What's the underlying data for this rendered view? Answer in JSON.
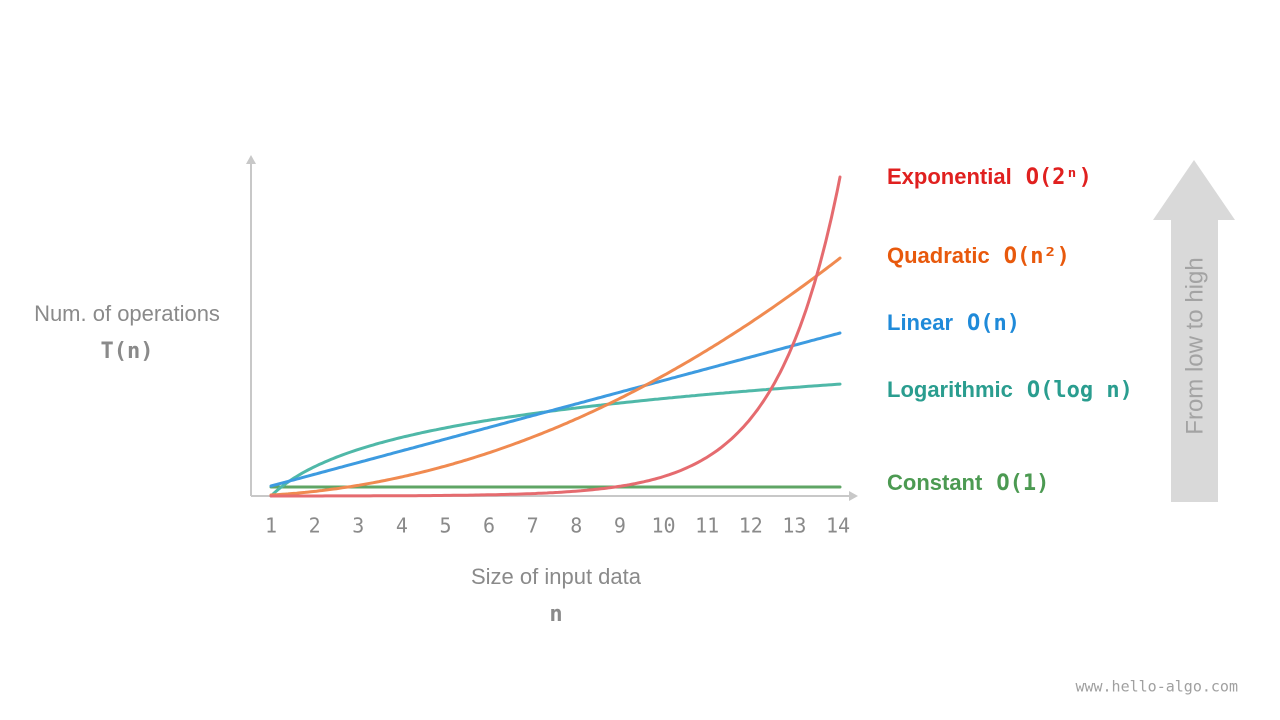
{
  "y_axis": {
    "label": "Num. of operations",
    "symbol": "T(n)"
  },
  "x_axis": {
    "label": "Size of input data",
    "symbol": "n",
    "ticks": [
      1,
      2,
      3,
      4,
      5,
      6,
      7,
      8,
      9,
      10,
      11,
      12,
      13,
      14
    ]
  },
  "legend": [
    {
      "name": "Exponential",
      "notation": "O(2ⁿ)"
    },
    {
      "name": "Quadratic",
      "notation": "O(n²)"
    },
    {
      "name": "Linear",
      "notation": "O(n)"
    },
    {
      "name": "Logarithmic",
      "notation": "O(log n)"
    },
    {
      "name": "Constant",
      "notation": "O(1)"
    }
  ],
  "arrow_label": "From low to high",
  "watermark": "www.hello-algo.com"
}
